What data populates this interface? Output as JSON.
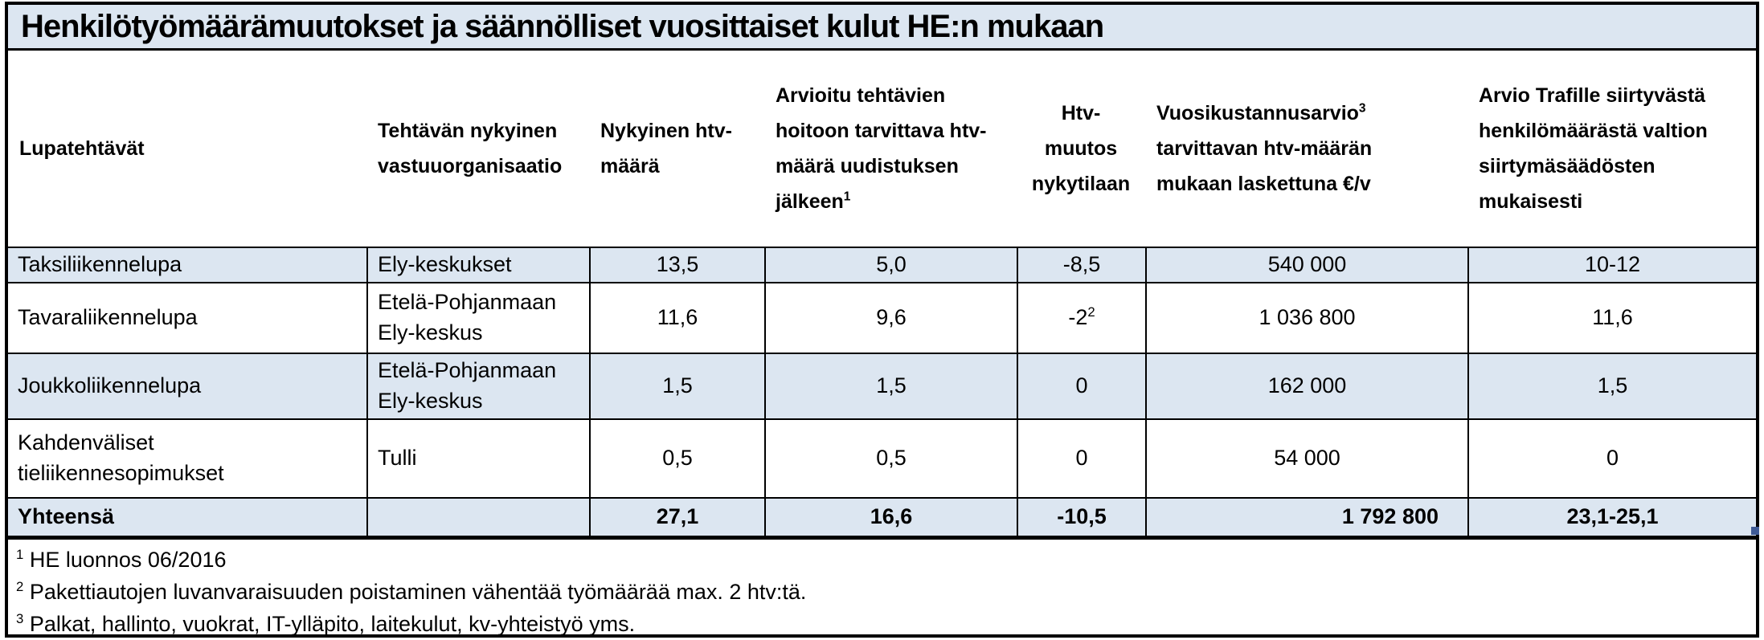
{
  "title": "Henkilötyömäärämuutokset ja säännölliset vuosittaiset kulut HE:n mukaan",
  "table": {
    "column_headers": [
      "Lupatehtävät",
      "Tehtävän nykyinen\nvastuuorganisaatio",
      "Nykyinen htv-\nmäärä",
      "Arvioitu tehtävien\nhoitoon tarvittava htv-\nmäärä uudistuksen\njälkeen^{1}",
      "Htv-\nmuutos\nnykytilaan",
      "Vuosikustannusarvio^{3}\ntarvittavan htv-määrän\nmukaan laskettuna €/v",
      "Arvio Trafille siirtyvästä\nhenkilömäärästä valtion\nsiirtymäsäädösten\nmukaisesti"
    ],
    "rows": [
      {
        "cells": [
          "Taksiliikennelupa",
          "Ely-keskukset",
          "13,5",
          "5,0",
          "-8,5",
          "540 000",
          "10-12"
        ],
        "shaded": true,
        "bold": false
      },
      {
        "cells": [
          "Tavaraliikennelupa",
          "Etelä-Pohjanmaan\nEly-keskus",
          "11,6",
          "9,6",
          "-2^{2}",
          "1 036 800",
          "11,6"
        ],
        "shaded": false,
        "bold": false
      },
      {
        "cells": [
          "Joukkoliikennelupa",
          "Etelä-Pohjanmaan\nEly-keskus",
          "1,5",
          "1,5",
          "0",
          "162 000",
          "1,5"
        ],
        "shaded": true,
        "bold": false
      },
      {
        "cells": [
          "Kahdenväliset\ntieliikennesopimukset",
          "Tulli",
          "0,5",
          "0,5",
          "0",
          "54 000",
          "0"
        ],
        "shaded": false,
        "bold": false
      },
      {
        "cells": [
          "Yhteensä",
          "",
          "27,1",
          "16,6",
          "-10,5",
          "1 792 800",
          "23,1-25,1"
        ],
        "shaded": true,
        "bold": true,
        "total": true
      }
    ]
  },
  "footnotes": [
    "^{1} HE luonnos 06/2016",
    "^{2} Pakettiautojen luvanvaraisuuden poistaminen vähentää työmäärää max. 2 htv:tä.",
    "^{3} Palkat, hallinto, vuokrat, IT-ylläpito,  laitekulut, kv-yhteistyö yms."
  ],
  "colors": {
    "shaded_row_bg": "#dce6f1",
    "border": "#000000",
    "selection_handle": "#3e5a96"
  }
}
